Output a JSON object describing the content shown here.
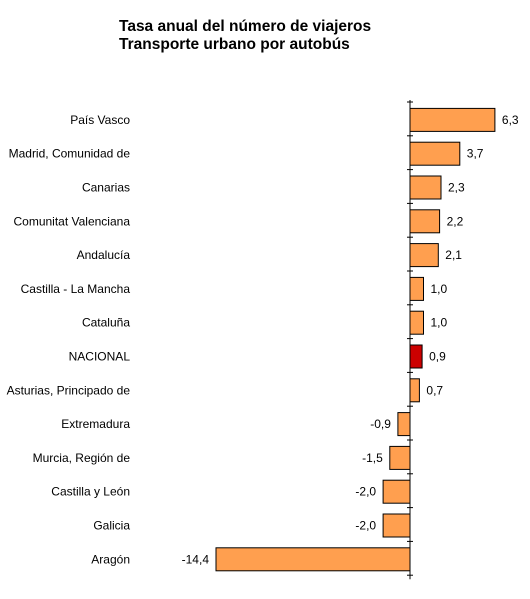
{
  "chart_data": {
    "type": "bar",
    "orientation": "horizontal",
    "title": "Tasa anual del número de viajeros",
    "subtitle": "Transporte urbano por autobús",
    "categories": [
      "País Vasco",
      "Madrid, Comunidad de",
      "Canarias",
      "Comunitat Valenciana",
      "Andalucía",
      "Castilla - La Mancha",
      "Cataluña",
      "NACIONAL",
      "Asturias, Principado de",
      "Extremadura",
      "Murcia, Región de",
      "Castilla y León",
      "Galicia",
      "Aragón"
    ],
    "values": [
      6.3,
      3.7,
      2.3,
      2.2,
      2.1,
      1.0,
      1.0,
      0.9,
      0.7,
      -0.9,
      -1.5,
      -2.0,
      -2.0,
      -14.4
    ],
    "value_labels": [
      "6,3",
      "3,7",
      "2,3",
      "2,2",
      "2,1",
      "1,0",
      "1,0",
      "0,9",
      "0,7",
      "-0,9",
      "-1,5",
      "-2,0",
      "-2,0",
      "-14,4"
    ],
    "highlight": "NACIONAL",
    "colors": {
      "bar": "#FF9F4F",
      "highlight": "#CC0000",
      "outline": "#000000"
    },
    "xlim": [
      -14.4,
      6.3
    ],
    "grid": false,
    "legend": "none"
  }
}
